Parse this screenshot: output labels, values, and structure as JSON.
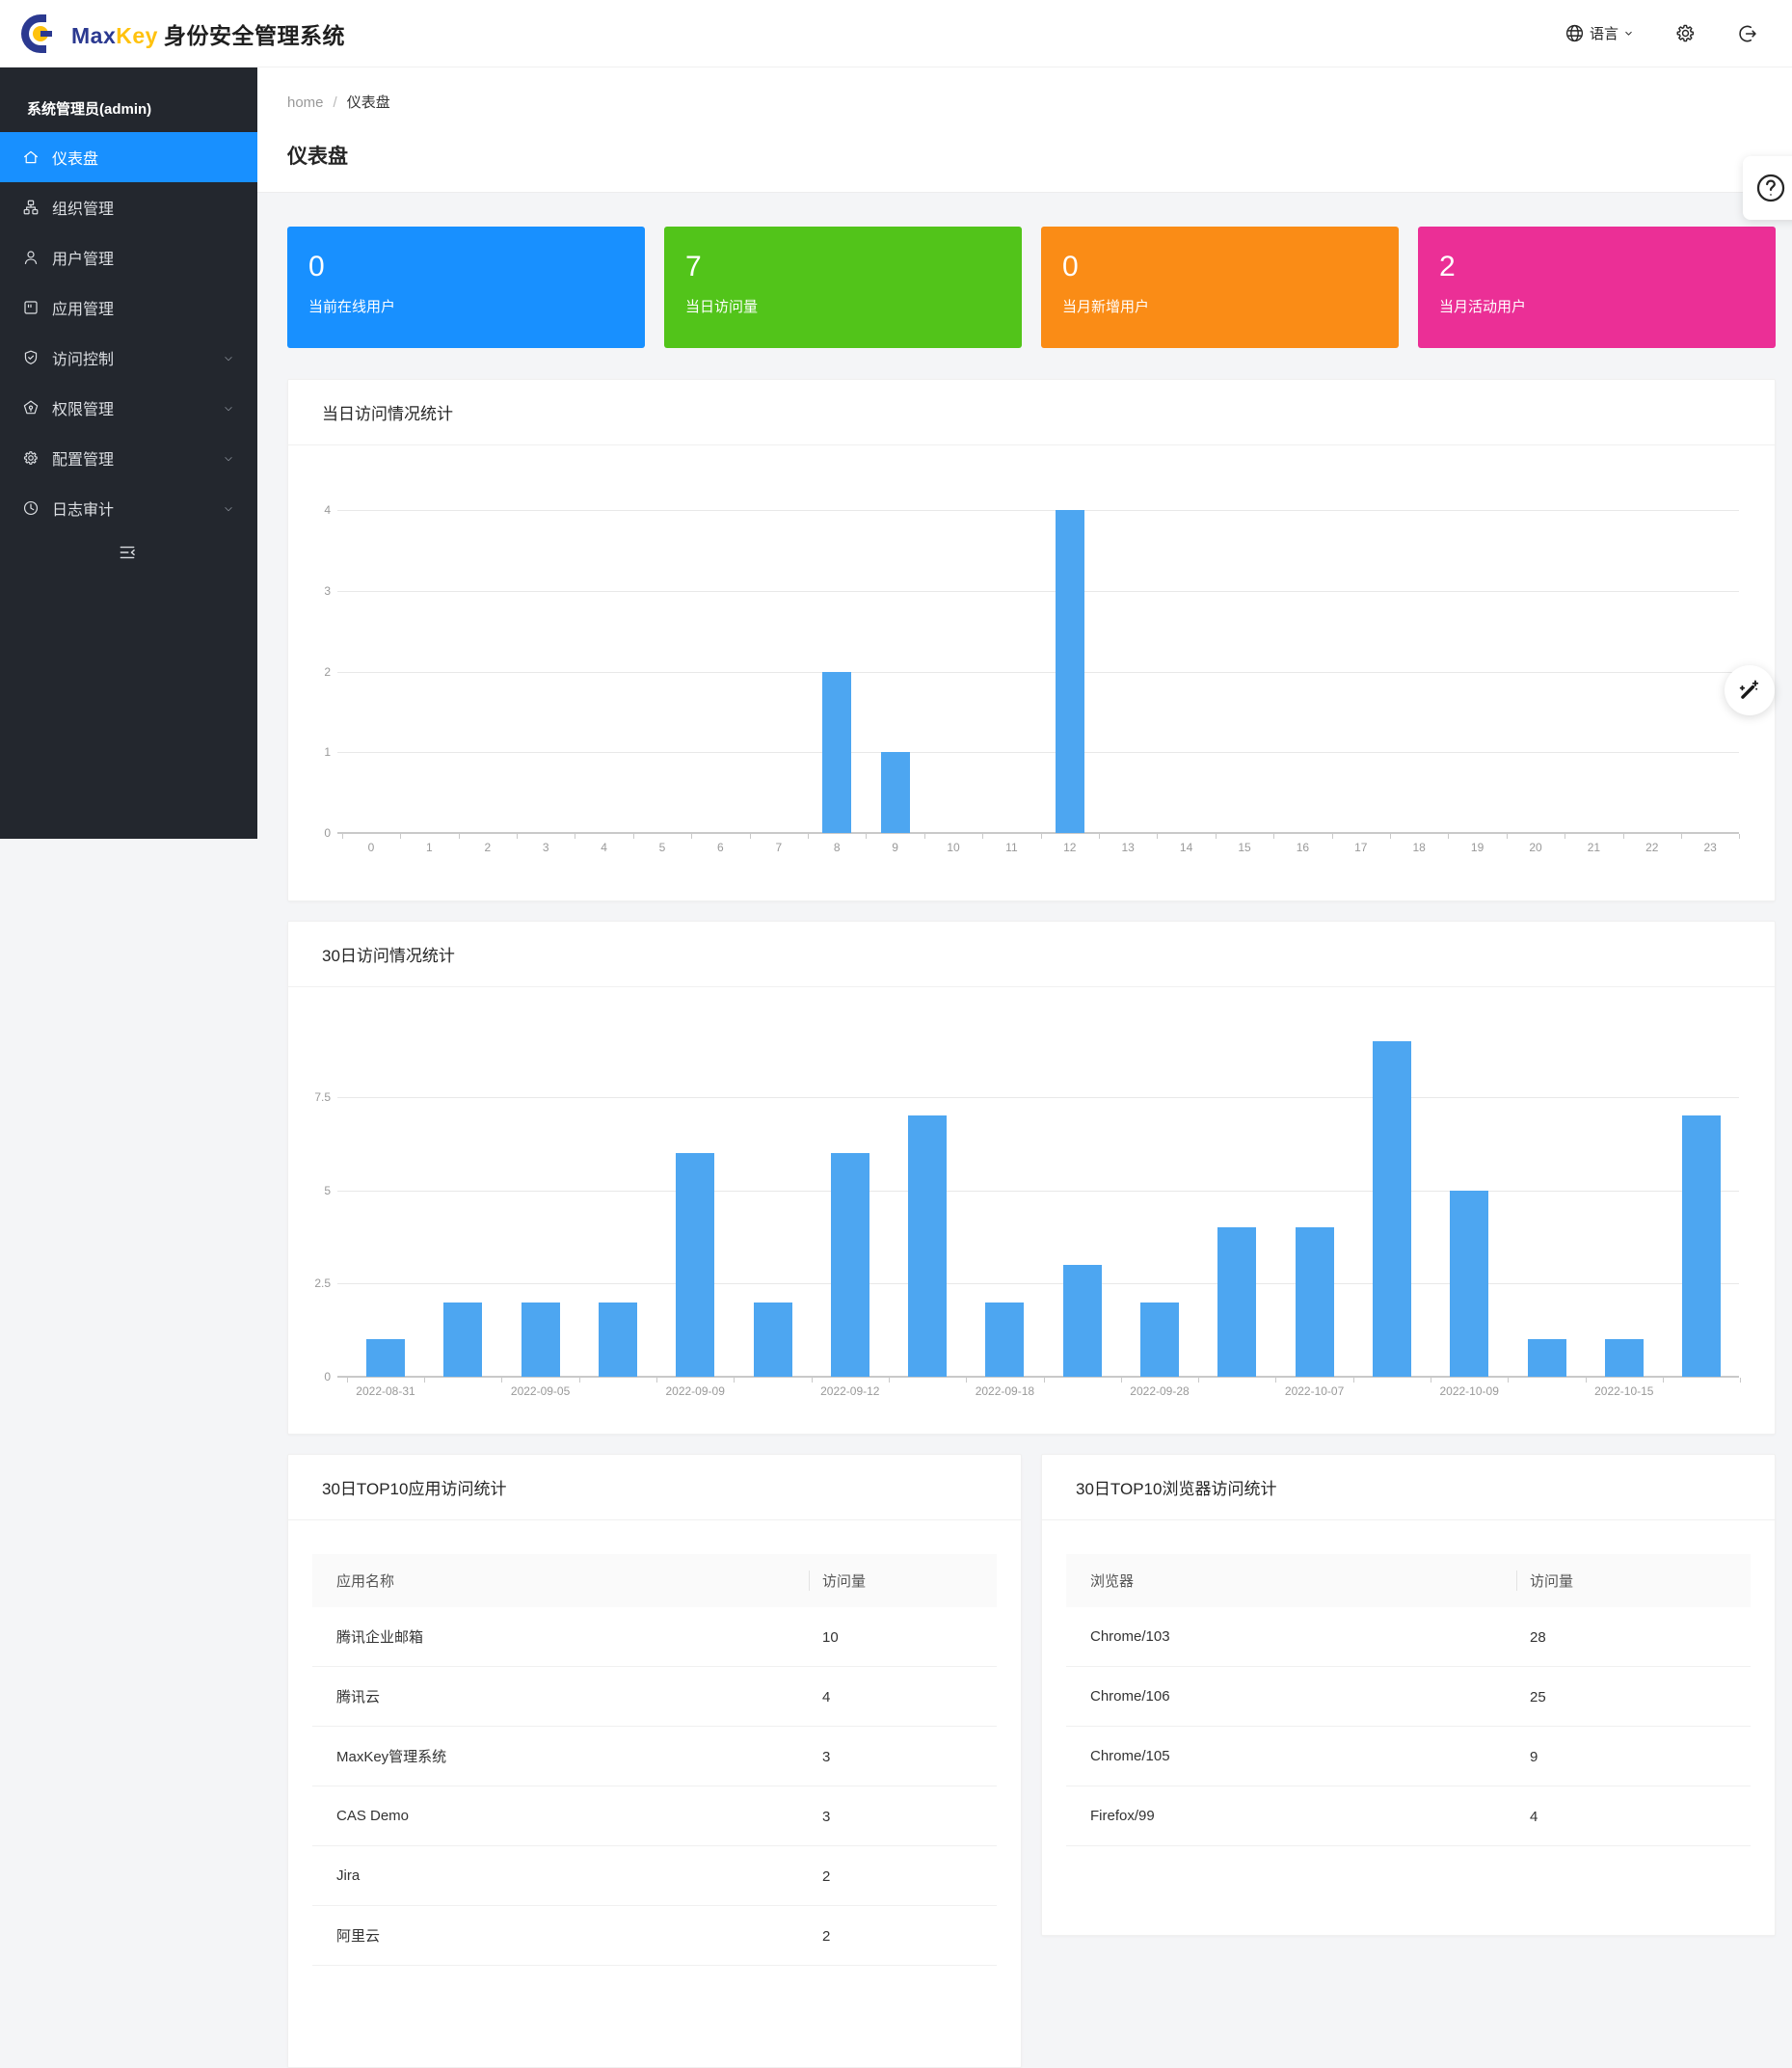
{
  "header": {
    "brand_max": "Max",
    "brand_key": "Key",
    "brand_suffix": "身份安全管理系统",
    "language_label": "语言"
  },
  "sidebar": {
    "user": "系统管理员(admin)",
    "items": [
      {
        "key": "dashboard",
        "label": "仪表盘",
        "icon": "home-icon",
        "active": true,
        "expandable": false
      },
      {
        "key": "org",
        "label": "组织管理",
        "icon": "org-icon",
        "active": false,
        "expandable": false
      },
      {
        "key": "user",
        "label": "用户管理",
        "icon": "user-icon",
        "active": false,
        "expandable": false
      },
      {
        "key": "app",
        "label": "应用管理",
        "icon": "app-icon",
        "active": false,
        "expandable": false
      },
      {
        "key": "access",
        "label": "访问控制",
        "icon": "shield-icon",
        "active": false,
        "expandable": true
      },
      {
        "key": "permission",
        "label": "权限管理",
        "icon": "permission-icon",
        "active": false,
        "expandable": true
      },
      {
        "key": "config",
        "label": "配置管理",
        "icon": "gear-icon",
        "active": false,
        "expandable": true
      },
      {
        "key": "audit",
        "label": "日志审计",
        "icon": "clock-icon",
        "active": false,
        "expandable": true
      }
    ]
  },
  "breadcrumb": {
    "home": "home",
    "separator": "/",
    "current": "仪表盘"
  },
  "page_title": "仪表盘",
  "stat_cards": [
    {
      "value": "0",
      "label": "当前在线用户",
      "color": "#1890ff"
    },
    {
      "value": "7",
      "label": "当日访问量",
      "color": "#52c41a"
    },
    {
      "value": "0",
      "label": "当月新增用户",
      "color": "#fa8c16"
    },
    {
      "value": "2",
      "label": "当月活动用户",
      "color": "#eb2f96"
    }
  ],
  "chart_data": [
    {
      "type": "bar",
      "title": "当日访问情况统计",
      "categories": [
        "0",
        "1",
        "2",
        "3",
        "4",
        "5",
        "6",
        "7",
        "8",
        "9",
        "10",
        "11",
        "12",
        "13",
        "14",
        "15",
        "16",
        "17",
        "18",
        "19",
        "20",
        "21",
        "22",
        "23"
      ],
      "values": [
        0,
        0,
        0,
        0,
        0,
        0,
        0,
        0,
        2,
        1,
        0,
        0,
        4,
        0,
        0,
        0,
        0,
        0,
        0,
        0,
        0,
        0,
        0,
        0
      ],
      "xlabel": "",
      "ylabel": "",
      "y_ticks": [
        0,
        1,
        2,
        3,
        4
      ],
      "ylim": [
        0,
        4
      ],
      "grid": true,
      "legend": "none",
      "bar_color": "#4da6f1"
    },
    {
      "type": "bar",
      "title": "30日访问情况统计",
      "categories": [
        "2022-08-31",
        "",
        "2022-09-05",
        "",
        "2022-09-09",
        "",
        "2022-09-12",
        "",
        "2022-09-18",
        "",
        "2022-09-28",
        "",
        "2022-10-07",
        "",
        "2022-10-09",
        "",
        "2022-10-15",
        ""
      ],
      "values": [
        1,
        2,
        2,
        2,
        6,
        2,
        6,
        7,
        2,
        3,
        2,
        4,
        4,
        9,
        5,
        1,
        1,
        7
      ],
      "xlabel": "",
      "ylabel": "",
      "y_ticks": [
        0,
        2.5,
        5,
        7.5
      ],
      "ylim": [
        0,
        9.6
      ],
      "grid": true,
      "legend": "none",
      "bar_color": "#4da6f1"
    }
  ],
  "tables": [
    {
      "title": "30日TOP10应用访问统计",
      "headers": [
        "应用名称",
        "访问量"
      ],
      "rows": [
        [
          "腾讯企业邮箱",
          "10"
        ],
        [
          "腾讯云",
          "4"
        ],
        [
          "MaxKey管理系统",
          "3"
        ],
        [
          "CAS Demo",
          "3"
        ],
        [
          "Jira",
          "2"
        ],
        [
          "阿里云",
          "2"
        ]
      ]
    },
    {
      "title": "30日TOP10浏览器访问统计",
      "headers": [
        "浏览器",
        "访问量"
      ],
      "rows": [
        [
          "Chrome/103",
          "28"
        ],
        [
          "Chrome/106",
          "25"
        ],
        [
          "Chrome/105",
          "9"
        ],
        [
          "Firefox/99",
          "4"
        ]
      ]
    }
  ],
  "colors": {
    "accent": "#1890ff",
    "bar": "#4da6f1",
    "sidebar_bg": "#23272e",
    "brand_blue": "#2b3990",
    "brand_yellow": "#ffc20e"
  }
}
